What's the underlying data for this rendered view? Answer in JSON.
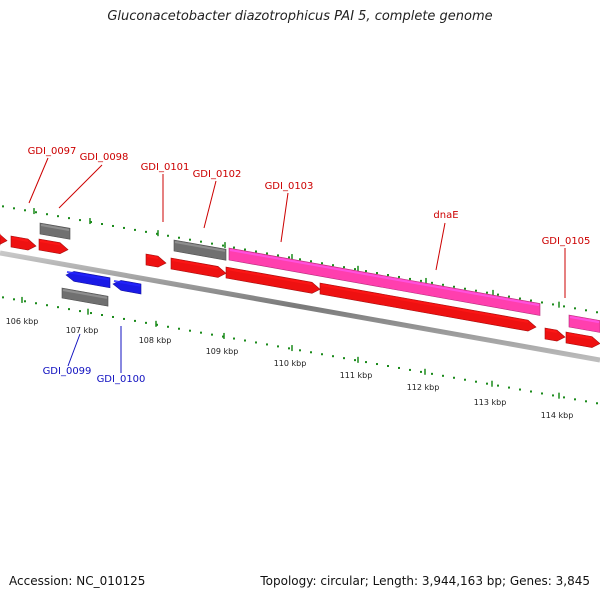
{
  "title": "Gluconacetobacter diazotrophicus PAI 5, complete genome",
  "footer": {
    "accession": "Accession: NC_010125",
    "summary": "Topology: circular; Length: 3,944,163 bp; Genes: 3,845"
  },
  "scale_labels": [
    "106 kbp",
    "107 kbp",
    "108 kbp",
    "109 kbp",
    "110 kbp",
    "111 kbp",
    "112 kbp",
    "113 kbp",
    "114 kbp"
  ],
  "colors": {
    "forward_gene": "#ee1111",
    "reverse_gene": "#1a1ae6",
    "rna_gene": "#707070",
    "cds_feature": "#ff3fae",
    "backbone": "#888888",
    "tick": "#1a8a1a",
    "label_forward": "#cc0000",
    "label_reverse": "#1010c0"
  },
  "forward_labels": [
    "GDI_0097",
    "GDI_0098",
    "GDI_0101",
    "GDI_0102",
    "GDI_0103",
    "dnaE",
    "GDI_0105"
  ],
  "reverse_labels": [
    "GDI_0099",
    "GDI_0100"
  ]
}
